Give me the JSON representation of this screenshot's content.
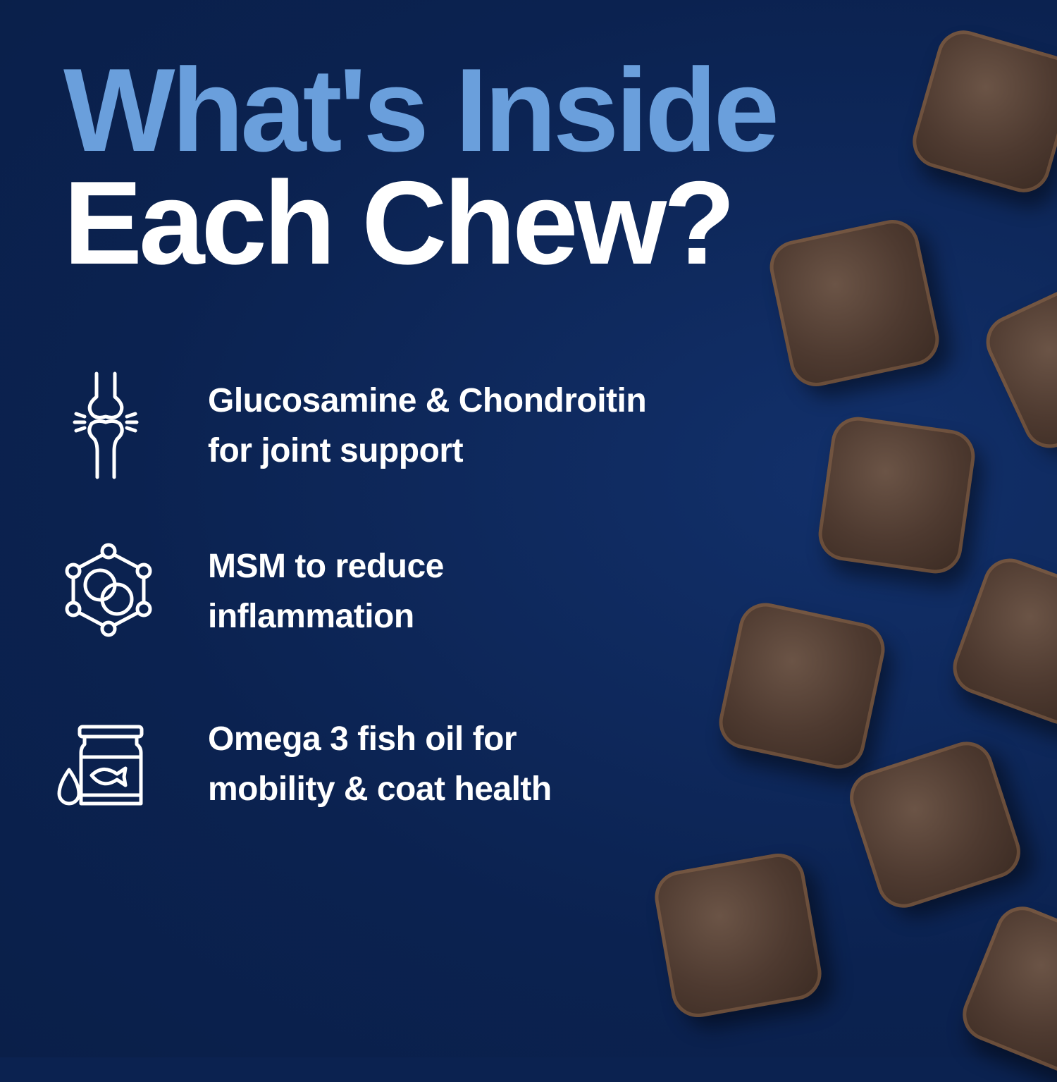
{
  "heading": {
    "line1": "What's Inside",
    "line2": "Each Chew?",
    "line1_color": "#6a9fdc",
    "line2_color": "#ffffff"
  },
  "background_color": "#0b2250",
  "features": [
    {
      "icon": "knee-joint-icon",
      "line1": "Glucosamine & Chondroitin",
      "line2": "for joint support"
    },
    {
      "icon": "molecule-icon",
      "line1": "MSM to reduce",
      "line2": "inflammation"
    },
    {
      "icon": "fish-oil-jar-icon",
      "line1": "Omega 3 fish oil for",
      "line2": "mobility & coat health"
    }
  ]
}
